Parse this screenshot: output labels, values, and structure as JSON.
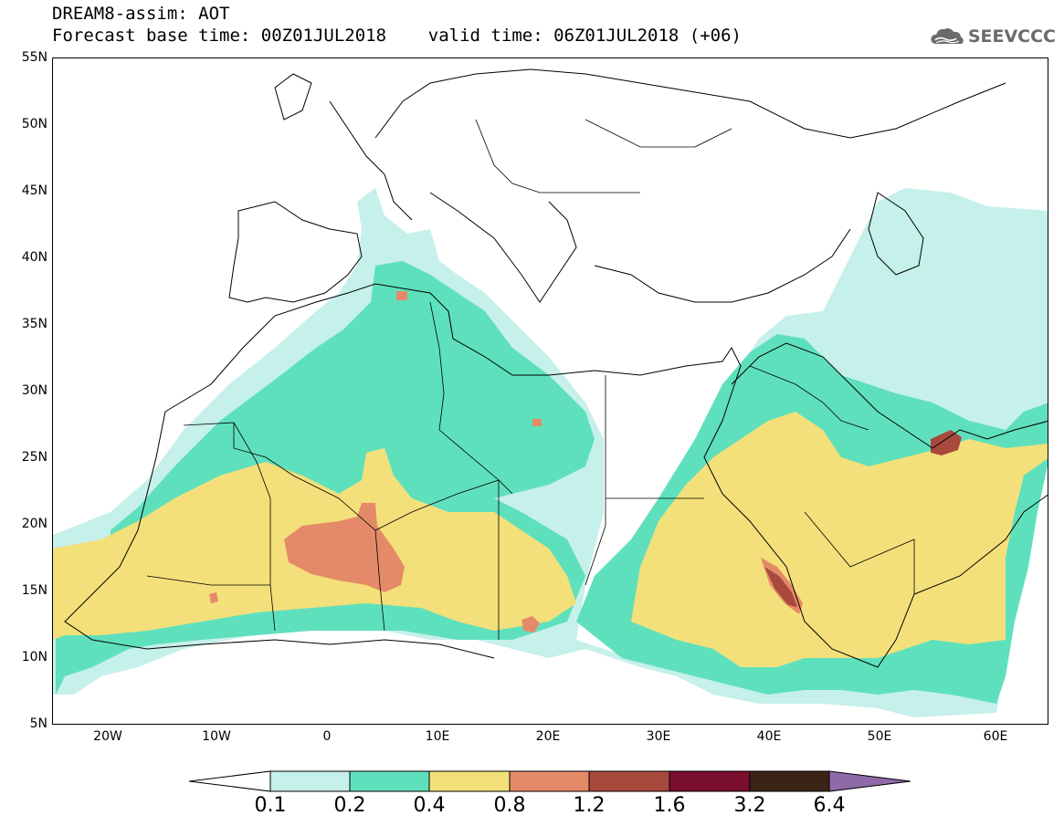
{
  "header": {
    "line1": "DREAM8-assim: AOT",
    "line2": "Forecast base time: 00Z01JUL2018    valid time: 06Z01JUL2018 (+06)"
  },
  "logo": {
    "text": "SEEVCCC",
    "icon": "cloud-icon"
  },
  "map": {
    "y_ticks": [
      "55N",
      "50N",
      "45N",
      "40N",
      "35N",
      "30N",
      "25N",
      "20N",
      "15N",
      "10N",
      "5N"
    ],
    "x_ticks": [
      "20W",
      "10W",
      "0",
      "10E",
      "20E",
      "30E",
      "40E",
      "50E",
      "60E"
    ]
  },
  "colorbar": {
    "labels": [
      "0.1",
      "0.2",
      "0.4",
      "0.8",
      "1.2",
      "1.6",
      "3.2",
      "6.4"
    ],
    "colors": [
      "#c6f0ea",
      "#5fe0bd",
      "#f3e07a",
      "#e58a68",
      "#a8493d",
      "#7a0e2e",
      "#3b2416",
      "#8e6aa8"
    ]
  },
  "field_colors": {
    "c1": "#c6f0ea",
    "c2": "#5fe0bd",
    "c3": "#f3e07a",
    "c4": "#e58a68",
    "c5": "#a8493d"
  }
}
